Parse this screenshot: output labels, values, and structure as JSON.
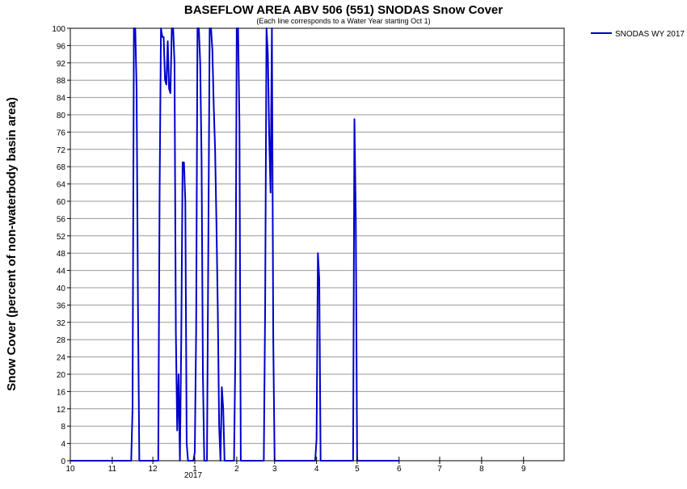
{
  "chart_data": {
    "type": "line",
    "title": "BASEFLOW AREA ABV 506 (551) SNODAS Snow Cover",
    "subtitle": "(Each line corresponds to a Water Year starting Oct 1)",
    "ylabel": "Snow Cover (percent of non-waterbody basin area)",
    "xlabel": "",
    "year_label": "2017",
    "xlim": [
      "2016-10-01",
      "2017-09-30"
    ],
    "ylim": [
      0,
      100
    ],
    "grid": true,
    "legend_position": "top-right",
    "x_ticks": [
      {
        "date": "2016-10-01",
        "label": "10"
      },
      {
        "date": "2016-11-01",
        "label": "11"
      },
      {
        "date": "2016-12-01",
        "label": "12"
      },
      {
        "date": "2017-01-01",
        "label": "1"
      },
      {
        "date": "2017-02-01",
        "label": "2"
      },
      {
        "date": "2017-03-01",
        "label": "3"
      },
      {
        "date": "2017-04-01",
        "label": "4"
      },
      {
        "date": "2017-05-01",
        "label": "5"
      },
      {
        "date": "2017-06-01",
        "label": "6"
      },
      {
        "date": "2017-07-01",
        "label": "7"
      },
      {
        "date": "2017-08-01",
        "label": "8"
      },
      {
        "date": "2017-09-01",
        "label": "9"
      }
    ],
    "y_ticks": [
      "0",
      "4",
      "8",
      "12",
      "16",
      "20",
      "24",
      "28",
      "32",
      "36",
      "40",
      "44",
      "48",
      "52",
      "56",
      "60",
      "64",
      "68",
      "72",
      "76",
      "80",
      "84",
      "88",
      "92",
      "96",
      "100"
    ],
    "series": [
      {
        "name": "SNODAS WY 2017",
        "color": "#0000cc",
        "points": [
          [
            "2016-10-01",
            0
          ],
          [
            "2016-11-15",
            0
          ],
          [
            "2016-11-16",
            12
          ],
          [
            "2016-11-17",
            100
          ],
          [
            "2016-11-18",
            100
          ],
          [
            "2016-11-19",
            86
          ],
          [
            "2016-11-20",
            36
          ],
          [
            "2016-11-21",
            0
          ],
          [
            "2016-12-05",
            0
          ],
          [
            "2016-12-06",
            62
          ],
          [
            "2016-12-07",
            100
          ],
          [
            "2016-12-08",
            98
          ],
          [
            "2016-12-09",
            98
          ],
          [
            "2016-12-10",
            88
          ],
          [
            "2016-12-11",
            87
          ],
          [
            "2016-12-12",
            97
          ],
          [
            "2016-12-13",
            86
          ],
          [
            "2016-12-14",
            85
          ],
          [
            "2016-12-15",
            100
          ],
          [
            "2016-12-16",
            100
          ],
          [
            "2016-12-17",
            92
          ],
          [
            "2016-12-18",
            30
          ],
          [
            "2016-12-19",
            7
          ],
          [
            "2016-12-20",
            20
          ],
          [
            "2016-12-21",
            0
          ],
          [
            "2016-12-22",
            28
          ],
          [
            "2016-12-23",
            69
          ],
          [
            "2016-12-24",
            69
          ],
          [
            "2016-12-25",
            60
          ],
          [
            "2016-12-26",
            4
          ],
          [
            "2016-12-27",
            0
          ],
          [
            "2016-12-31",
            0
          ],
          [
            "2017-01-01",
            2
          ],
          [
            "2017-01-02",
            30
          ],
          [
            "2017-01-03",
            100
          ],
          [
            "2017-01-04",
            100
          ],
          [
            "2017-01-05",
            92
          ],
          [
            "2017-01-06",
            70
          ],
          [
            "2017-01-07",
            20
          ],
          [
            "2017-01-08",
            0
          ],
          [
            "2017-01-10",
            0
          ],
          [
            "2017-01-11",
            50
          ],
          [
            "2017-01-12",
            100
          ],
          [
            "2017-01-13",
            100
          ],
          [
            "2017-01-14",
            95
          ],
          [
            "2017-01-15",
            82
          ],
          [
            "2017-01-16",
            72
          ],
          [
            "2017-01-17",
            55
          ],
          [
            "2017-01-18",
            35
          ],
          [
            "2017-01-19",
            8
          ],
          [
            "2017-01-20",
            0
          ],
          [
            "2017-01-21",
            17
          ],
          [
            "2017-01-22",
            12
          ],
          [
            "2017-01-23",
            0
          ],
          [
            "2017-01-30",
            0
          ],
          [
            "2017-01-31",
            25
          ],
          [
            "2017-02-01",
            100
          ],
          [
            "2017-02-02",
            100
          ],
          [
            "2017-02-03",
            78
          ],
          [
            "2017-02-04",
            0
          ],
          [
            "2017-02-21",
            0
          ],
          [
            "2017-02-22",
            35
          ],
          [
            "2017-02-23",
            100
          ],
          [
            "2017-02-24",
            94
          ],
          [
            "2017-02-25",
            75
          ],
          [
            "2017-02-26",
            62
          ],
          [
            "2017-02-27",
            100
          ],
          [
            "2017-02-28",
            28
          ],
          [
            "2017-03-01",
            0
          ],
          [
            "2017-03-31",
            0
          ],
          [
            "2017-04-01",
            5
          ],
          [
            "2017-04-02",
            48
          ],
          [
            "2017-04-03",
            42
          ],
          [
            "2017-04-04",
            0
          ],
          [
            "2017-04-28",
            0
          ],
          [
            "2017-04-29",
            79
          ],
          [
            "2017-04-30",
            56
          ],
          [
            "2017-05-01",
            0
          ],
          [
            "2017-06-01",
            0
          ]
        ]
      }
    ]
  }
}
